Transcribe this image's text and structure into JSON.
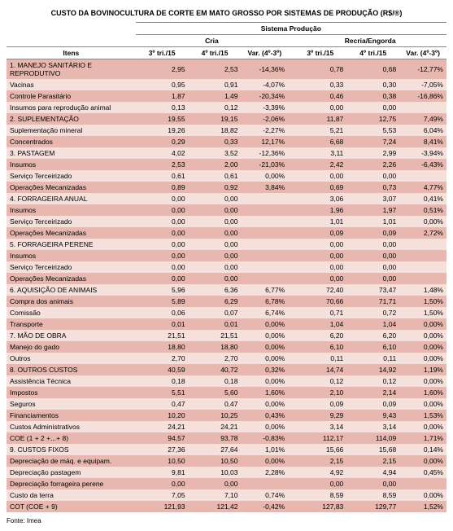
{
  "title": "CUSTO DA BOVINOCULTURA DE CORTE EM MATO GROSSO POR SISTEMAS DE PRODUÇÃO (R$/®)",
  "source": "Fonte: Imea",
  "superHeader": "Sistema Produção",
  "groupHeaders": {
    "left": "Cria",
    "right": "Recria/Engorda"
  },
  "colHeaders": {
    "itens": "Itens",
    "t1": "3º tri./15",
    "t2": "4º tri./15",
    "var": "Var. (4º-3º)"
  },
  "colors": {
    "rowDark": "#e8b7af",
    "rowLight": "#f6e0dc",
    "border": "#888888",
    "background": "#ffffff"
  },
  "rows": [
    {
      "s": "d",
      "label": "1. MANEJO SANITÁRIO E REPRODUTIVO",
      "a": "2,95",
      "b": "2,53",
      "v1": "-14,36%",
      "c": "0,78",
      "d": "0,68",
      "v2": "-12,77%"
    },
    {
      "s": "l",
      "label": "Vacinas",
      "a": "0,95",
      "b": "0,91",
      "v1": "-4,07%",
      "c": "0,33",
      "d": "0,30",
      "v2": "-7,05%"
    },
    {
      "s": "d",
      "label": "Controle Parasitário",
      "a": "1,87",
      "b": "1,49",
      "v1": "-20,34%",
      "c": "0,46",
      "d": "0,38",
      "v2": "-16,86%"
    },
    {
      "s": "l",
      "label": "Insumos para reprodução animal",
      "a": "0,13",
      "b": "0,12",
      "v1": "-3,39%",
      "c": "0,00",
      "d": "0,00",
      "v2": ""
    },
    {
      "s": "d",
      "label": "2. SUPLEMENTAÇÃO",
      "a": "19,55",
      "b": "19,15",
      "v1": "-2,06%",
      "c": "11,87",
      "d": "12,75",
      "v2": "7,49%"
    },
    {
      "s": "l",
      "label": "Suplementação mineral",
      "a": "19,26",
      "b": "18,82",
      "v1": "-2,27%",
      "c": "5,21",
      "d": "5,53",
      "v2": "6,04%"
    },
    {
      "s": "d",
      "label": "Concentrados",
      "a": "0,29",
      "b": "0,33",
      "v1": "12,17%",
      "c": "6,68",
      "d": "7,24",
      "v2": "8,41%"
    },
    {
      "s": "l",
      "label": "3. PASTAGEM",
      "a": "4,02",
      "b": "3,52",
      "v1": "-12,36%",
      "c": "3,11",
      "d": "2,99",
      "v2": "-3,94%"
    },
    {
      "s": "d",
      "label": "Insumos",
      "a": "2,53",
      "b": "2,00",
      "v1": "-21,03%",
      "c": "2,42",
      "d": "2,26",
      "v2": "-6,43%"
    },
    {
      "s": "l",
      "label": "Serviço Terceirizado",
      "a": "0,61",
      "b": "0,61",
      "v1": "0,00%",
      "c": "0,00",
      "d": "0,00",
      "v2": ""
    },
    {
      "s": "d",
      "label": "Operações Mecanizadas",
      "a": "0,89",
      "b": "0,92",
      "v1": "3,84%",
      "c": "0,69",
      "d": "0,73",
      "v2": "4,77%"
    },
    {
      "s": "l",
      "label": "4. FORRAGEIRA ANUAL",
      "a": "0,00",
      "b": "0,00",
      "v1": "",
      "c": "3,06",
      "d": "3,07",
      "v2": "0,41%"
    },
    {
      "s": "d",
      "label": "Insumos",
      "a": "0,00",
      "b": "0,00",
      "v1": "",
      "c": "1,96",
      "d": "1,97",
      "v2": "0,51%"
    },
    {
      "s": "l",
      "label": "Serviço Terceirizado",
      "a": "0,00",
      "b": "0,00",
      "v1": "",
      "c": "1,01",
      "d": "1,01",
      "v2": "0,00%"
    },
    {
      "s": "d",
      "label": "Operações Mecanizadas",
      "a": "0,00",
      "b": "0,00",
      "v1": "",
      "c": "0,09",
      "d": "0,09",
      "v2": "2,72%"
    },
    {
      "s": "l",
      "label": "5. FORRAGEIRA PERENE",
      "a": "0,00",
      "b": "0,00",
      "v1": "",
      "c": "0,00",
      "d": "0,00",
      "v2": ""
    },
    {
      "s": "d",
      "label": "Insumos",
      "a": "0,00",
      "b": "0,00",
      "v1": "",
      "c": "0,00",
      "d": "0,00",
      "v2": ""
    },
    {
      "s": "l",
      "label": "Serviço Terceirizado",
      "a": "0,00",
      "b": "0,00",
      "v1": "",
      "c": "0,00",
      "d": "0,00",
      "v2": ""
    },
    {
      "s": "d",
      "label": "Operações Mecanizadas",
      "a": "0,00",
      "b": "0,00",
      "v1": "",
      "c": "0,00",
      "d": "0,00",
      "v2": ""
    },
    {
      "s": "l",
      "label": "6. AQUISIÇÃO DE ANIMAIS",
      "a": "5,96",
      "b": "6,36",
      "v1": "6,77%",
      "c": "72,40",
      "d": "73,47",
      "v2": "1,48%"
    },
    {
      "s": "d",
      "label": "Compra dos animais",
      "a": "5,89",
      "b": "6,29",
      "v1": "6,78%",
      "c": "70,66",
      "d": "71,71",
      "v2": "1,50%"
    },
    {
      "s": "l",
      "label": "Comissão",
      "a": "0,06",
      "b": "0,07",
      "v1": "6,74%",
      "c": "0,71",
      "d": "0,72",
      "v2": "1,50%"
    },
    {
      "s": "d",
      "label": "Transporte",
      "a": "0,01",
      "b": "0,01",
      "v1": "0,00%",
      "c": "1,04",
      "d": "1,04",
      "v2": "0,00%"
    },
    {
      "s": "l",
      "label": "7. MÃO DE OBRA",
      "a": "21,51",
      "b": "21,51",
      "v1": "0,00%",
      "c": "6,20",
      "d": "6,20",
      "v2": "0,00%"
    },
    {
      "s": "d",
      "label": "Manejo do gado",
      "a": "18,80",
      "b": "18,80",
      "v1": "0,00%",
      "c": "6,10",
      "d": "6,10",
      "v2": "0,00%"
    },
    {
      "s": "l",
      "label": "Outros",
      "a": "2,70",
      "b": "2,70",
      "v1": "0,00%",
      "c": "0,11",
      "d": "0,11",
      "v2": "0,00%"
    },
    {
      "s": "d",
      "label": "8. OUTROS CUSTOS",
      "a": "40,59",
      "b": "40,72",
      "v1": "0,32%",
      "c": "14,74",
      "d": "14,92",
      "v2": "1,19%"
    },
    {
      "s": "l",
      "label": "Assistência Técnica",
      "a": "0,18",
      "b": "0,18",
      "v1": "0,00%",
      "c": "0,12",
      "d": "0,12",
      "v2": "0,00%"
    },
    {
      "s": "d",
      "label": "Impostos",
      "a": "5,51",
      "b": "5,60",
      "v1": "1,60%",
      "c": "2,10",
      "d": "2,14",
      "v2": "1,60%"
    },
    {
      "s": "l",
      "label": "Seguros",
      "a": "0,47",
      "b": "0,47",
      "v1": "0,00%",
      "c": "0,09",
      "d": "0,09",
      "v2": "0,00%"
    },
    {
      "s": "d",
      "label": "Financiamentos",
      "a": "10,20",
      "b": "10,25",
      "v1": "0,43%",
      "c": "9,29",
      "d": "9,43",
      "v2": "1,53%"
    },
    {
      "s": "l",
      "label": "Custos Administrativos",
      "a": "24,21",
      "b": "24,21",
      "v1": "0,00%",
      "c": "3,14",
      "d": "3,14",
      "v2": "0,00%"
    },
    {
      "s": "d",
      "label": "COE (1 + 2 +...+ 8)",
      "a": "94,57",
      "b": "93,78",
      "v1": "-0,83%",
      "c": "112,17",
      "d": "114,09",
      "v2": "1,71%"
    },
    {
      "s": "l",
      "label": "9. CUSTOS FIXOS",
      "a": "27,36",
      "b": "27,64",
      "v1": "1,01%",
      "c": "15,66",
      "d": "15,68",
      "v2": "0,14%"
    },
    {
      "s": "d",
      "label": "Depreciação de máq. e equipam.",
      "a": "10,50",
      "b": "10,50",
      "v1": "0,00%",
      "c": "2,15",
      "d": "2,15",
      "v2": "0,00%"
    },
    {
      "s": "l",
      "label": "Depreciação pastagem",
      "a": "9,81",
      "b": "10,03",
      "v1": "2,28%",
      "c": "4,92",
      "d": "4,94",
      "v2": "0,45%"
    },
    {
      "s": "d",
      "label": "Depreciação forrageira perene",
      "a": "0,00",
      "b": "0,00",
      "v1": "",
      "c": "0,00",
      "d": "0,00",
      "v2": ""
    },
    {
      "s": "l",
      "label": "Custo da terra",
      "a": "7,05",
      "b": "7,10",
      "v1": "0,74%",
      "c": "8,59",
      "d": "8,59",
      "v2": "0,00%"
    },
    {
      "s": "d",
      "label": "COT (COE + 9)",
      "a": "121,93",
      "b": "121,42",
      "v1": "-0,42%",
      "c": "127,83",
      "d": "129,77",
      "v2": "1,52%"
    }
  ]
}
